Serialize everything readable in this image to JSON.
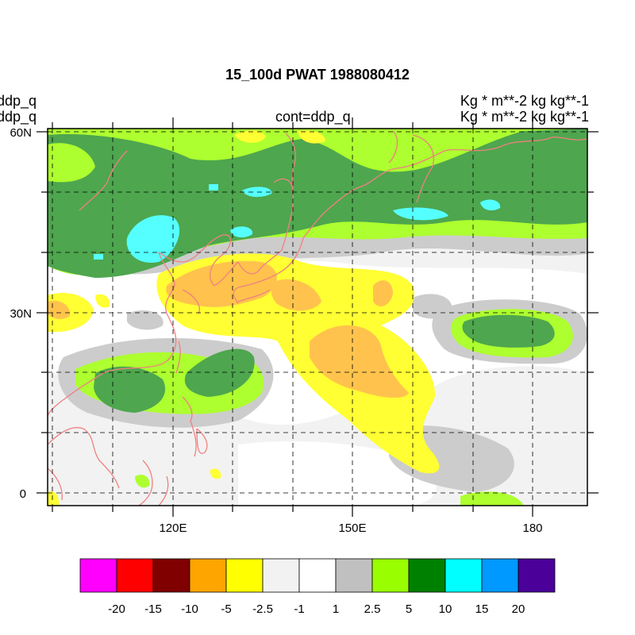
{
  "title": "15_100d PWAT  1988080412",
  "left_label_1": "ddp_q",
  "left_label_2": "ddp_q",
  "center_label": "cont=ddp_q",
  "right_label_1": "Kg  * m**-2 kg kg**-1",
  "right_label_2": "Kg  * m**-2 kg kg**-1",
  "lat_ticks": [
    "60N",
    "30N",
    "0"
  ],
  "lon_ticks": [
    "120E",
    "150E",
    "180"
  ],
  "colorbar": {
    "colors": [
      "#ff00ff",
      "#ff0000",
      "#800000",
      "#ffa500",
      "#ffff00",
      "#f2f2f2",
      "#ffffff",
      "#c0c0c0",
      "#99ff00",
      "#008000",
      "#00ffff",
      "#0099ff",
      "#4b0099"
    ],
    "labels": [
      "-20",
      "-15",
      "-10",
      "-5",
      "-2.5",
      "-1",
      "1",
      "2.5",
      "5",
      "10",
      "15",
      "20"
    ]
  },
  "map_colors": {
    "ocean_lightgray": "#f2f2f2",
    "gray": "#cccccc",
    "lightgreen": "#adff2f",
    "darkgreen": "#4ea64e",
    "cyan": "#55ffff",
    "yellow": "#ffff33",
    "orange": "#ffc34d",
    "coastline": "#f08080"
  }
}
